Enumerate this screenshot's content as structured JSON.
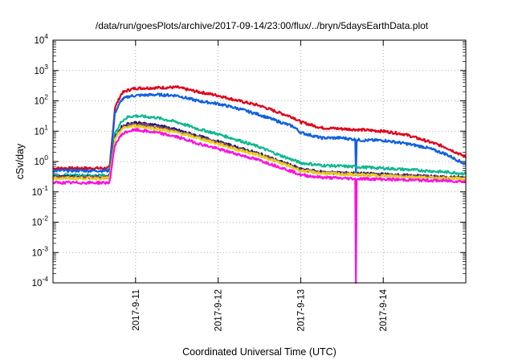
{
  "chart_data": {
    "type": "line",
    "title": "/data/run/goesPlots/archive/2017-09-14/23:00/flux/../bryn/5daysEarthData.plot",
    "xlabel": "Coordinated Universal Time (UTC)",
    "ylabel": "cSv/day",
    "y_scale": "log",
    "ylim": [
      0.0001,
      10000
    ],
    "xlim": [
      "2017-09-10T00:00",
      "2017-09-15T00:00"
    ],
    "y_tick_exponents": [
      -4,
      -3,
      -2,
      -1,
      0,
      1,
      2,
      3,
      4
    ],
    "x_tick_labels": [
      "2017-9-11",
      "2017-9-12",
      "2017-9-13",
      "2017-9-14"
    ],
    "x_tick_values": [
      "2017-09-11",
      "2017-09-12",
      "2017-09-13",
      "2017-09-14"
    ],
    "grid": true,
    "legend": "none",
    "x": [
      "2017-09-10T00:00",
      "2017-09-10T16:00",
      "2017-09-10T16:30",
      "2017-09-10T18:00",
      "2017-09-10T20:00",
      "2017-09-10T22:00",
      "2017-09-11T00:00",
      "2017-09-11T06:00",
      "2017-09-11T12:00",
      "2017-09-11T18:00",
      "2017-09-12T00:00",
      "2017-09-12T06:00",
      "2017-09-12T12:00",
      "2017-09-12T18:00",
      "2017-09-12T22:00",
      "2017-09-13T00:00",
      "2017-09-13T06:00",
      "2017-09-13T12:00",
      "2017-09-13T18:00",
      "2017-09-14T00:00",
      "2017-09-14T06:00",
      "2017-09-14T12:00",
      "2017-09-14T18:00",
      "2017-09-15T00:00"
    ],
    "series": [
      {
        "color": "#e0001a",
        "values": [
          0.6,
          0.6,
          0.7,
          60,
          180,
          230,
          260,
          270,
          280,
          200,
          150,
          100,
          70,
          40,
          28,
          20,
          13,
          12,
          11,
          10,
          8,
          5,
          3,
          1.4
        ]
      },
      {
        "color": "#1060e0",
        "values": [
          0.5,
          0.5,
          0.55,
          40,
          110,
          140,
          150,
          160,
          150,
          100,
          80,
          55,
          35,
          20,
          14,
          9,
          6,
          6,
          5,
          5,
          4,
          3,
          1.8,
          0.8
        ]
      },
      {
        "color": "#10b890",
        "values": [
          0.35,
          0.35,
          0.4,
          8,
          22,
          30,
          32,
          28,
          20,
          12,
          8,
          5,
          3,
          1.6,
          1.1,
          0.9,
          0.75,
          0.7,
          0.65,
          0.6,
          0.55,
          0.5,
          0.45,
          0.4
        ]
      },
      {
        "color": "#1a1a6a",
        "values": [
          0.32,
          0.3,
          0.35,
          6,
          14,
          18,
          19,
          16,
          11,
          7,
          4.5,
          2.8,
          1.8,
          1.0,
          0.7,
          0.55,
          0.45,
          0.42,
          0.4,
          0.38,
          0.35,
          0.33,
          0.3,
          0.3
        ]
      },
      {
        "color": "#8a4a70",
        "values": [
          0.3,
          0.3,
          0.33,
          5.5,
          13,
          16,
          17,
          14,
          10,
          6.5,
          4.2,
          2.6,
          1.7,
          0.95,
          0.66,
          0.52,
          0.43,
          0.4,
          0.38,
          0.36,
          0.34,
          0.32,
          0.3,
          0.28
        ]
      },
      {
        "color": "#e8d020",
        "values": [
          0.28,
          0.28,
          0.3,
          5,
          12,
          14,
          15,
          12,
          9,
          6,
          3.8,
          2.4,
          1.6,
          0.9,
          0.62,
          0.5,
          0.41,
          0.38,
          0.36,
          0.34,
          0.32,
          0.3,
          0.28,
          0.27
        ]
      },
      {
        "color": "#ff10e0",
        "values": [
          0.2,
          0.2,
          0.22,
          3.5,
          8,
          10,
          11,
          9,
          6.5,
          4,
          2.6,
          1.7,
          1.1,
          0.65,
          0.45,
          0.36,
          0.3,
          0.28,
          0.27,
          0.26,
          0.25,
          0.24,
          0.23,
          0.22
        ]
      }
    ],
    "spike": {
      "x": "2017-09-13T16:00",
      "blue_low": 0.35,
      "magenta_low": 0.0001
    }
  }
}
